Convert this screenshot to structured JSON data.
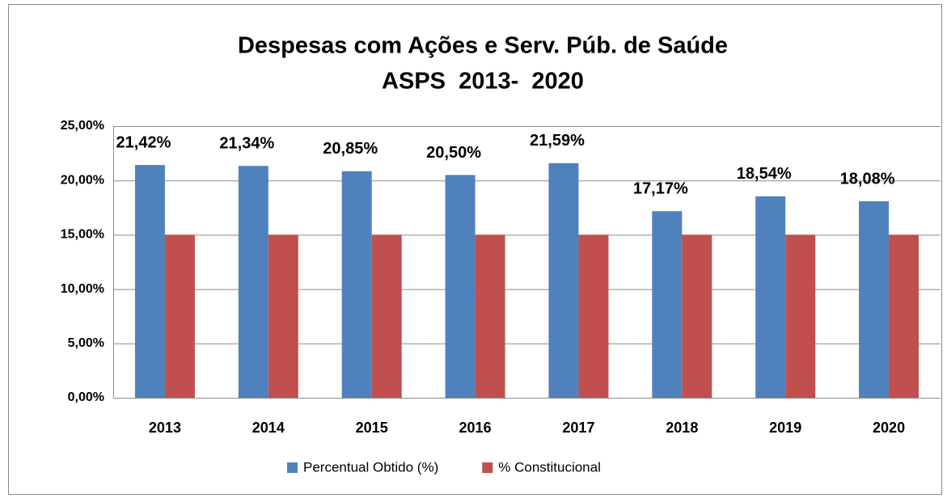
{
  "chart_data": {
    "type": "bar",
    "title": "Despesas com Ações e Serv. Púb. de Saúde",
    "subtitle": "ASPS  2013-  2020",
    "categories": [
      "2013",
      "2014",
      "2015",
      "2016",
      "2017",
      "2018",
      "2019",
      "2020"
    ],
    "series": [
      {
        "name": "Percentual Obtido (%)",
        "color": "#4f81bd",
        "values": [
          21.42,
          21.34,
          20.85,
          20.5,
          21.59,
          17.17,
          18.54,
          18.08
        ],
        "value_labels": [
          "21,42%",
          "21,34%",
          "20,85%",
          "20,50%",
          "21,59%",
          "17,17%",
          "18,54%",
          "18,08%"
        ]
      },
      {
        "name": "% Constitucional",
        "color": "#c0504d",
        "values": [
          15,
          15,
          15,
          15,
          15,
          15,
          15,
          15
        ]
      }
    ],
    "ylim": [
      0,
      25
    ],
    "yticks": [
      {
        "value": 0,
        "label": "0,00%"
      },
      {
        "value": 5,
        "label": "5,00%"
      },
      {
        "value": 10,
        "label": "10,00%"
      },
      {
        "value": 15,
        "label": "15,00%"
      },
      {
        "value": 20,
        "label": "20,00%"
      },
      {
        "value": 25,
        "label": "25,00%"
      }
    ],
    "grid": true,
    "legend": "bottom"
  }
}
